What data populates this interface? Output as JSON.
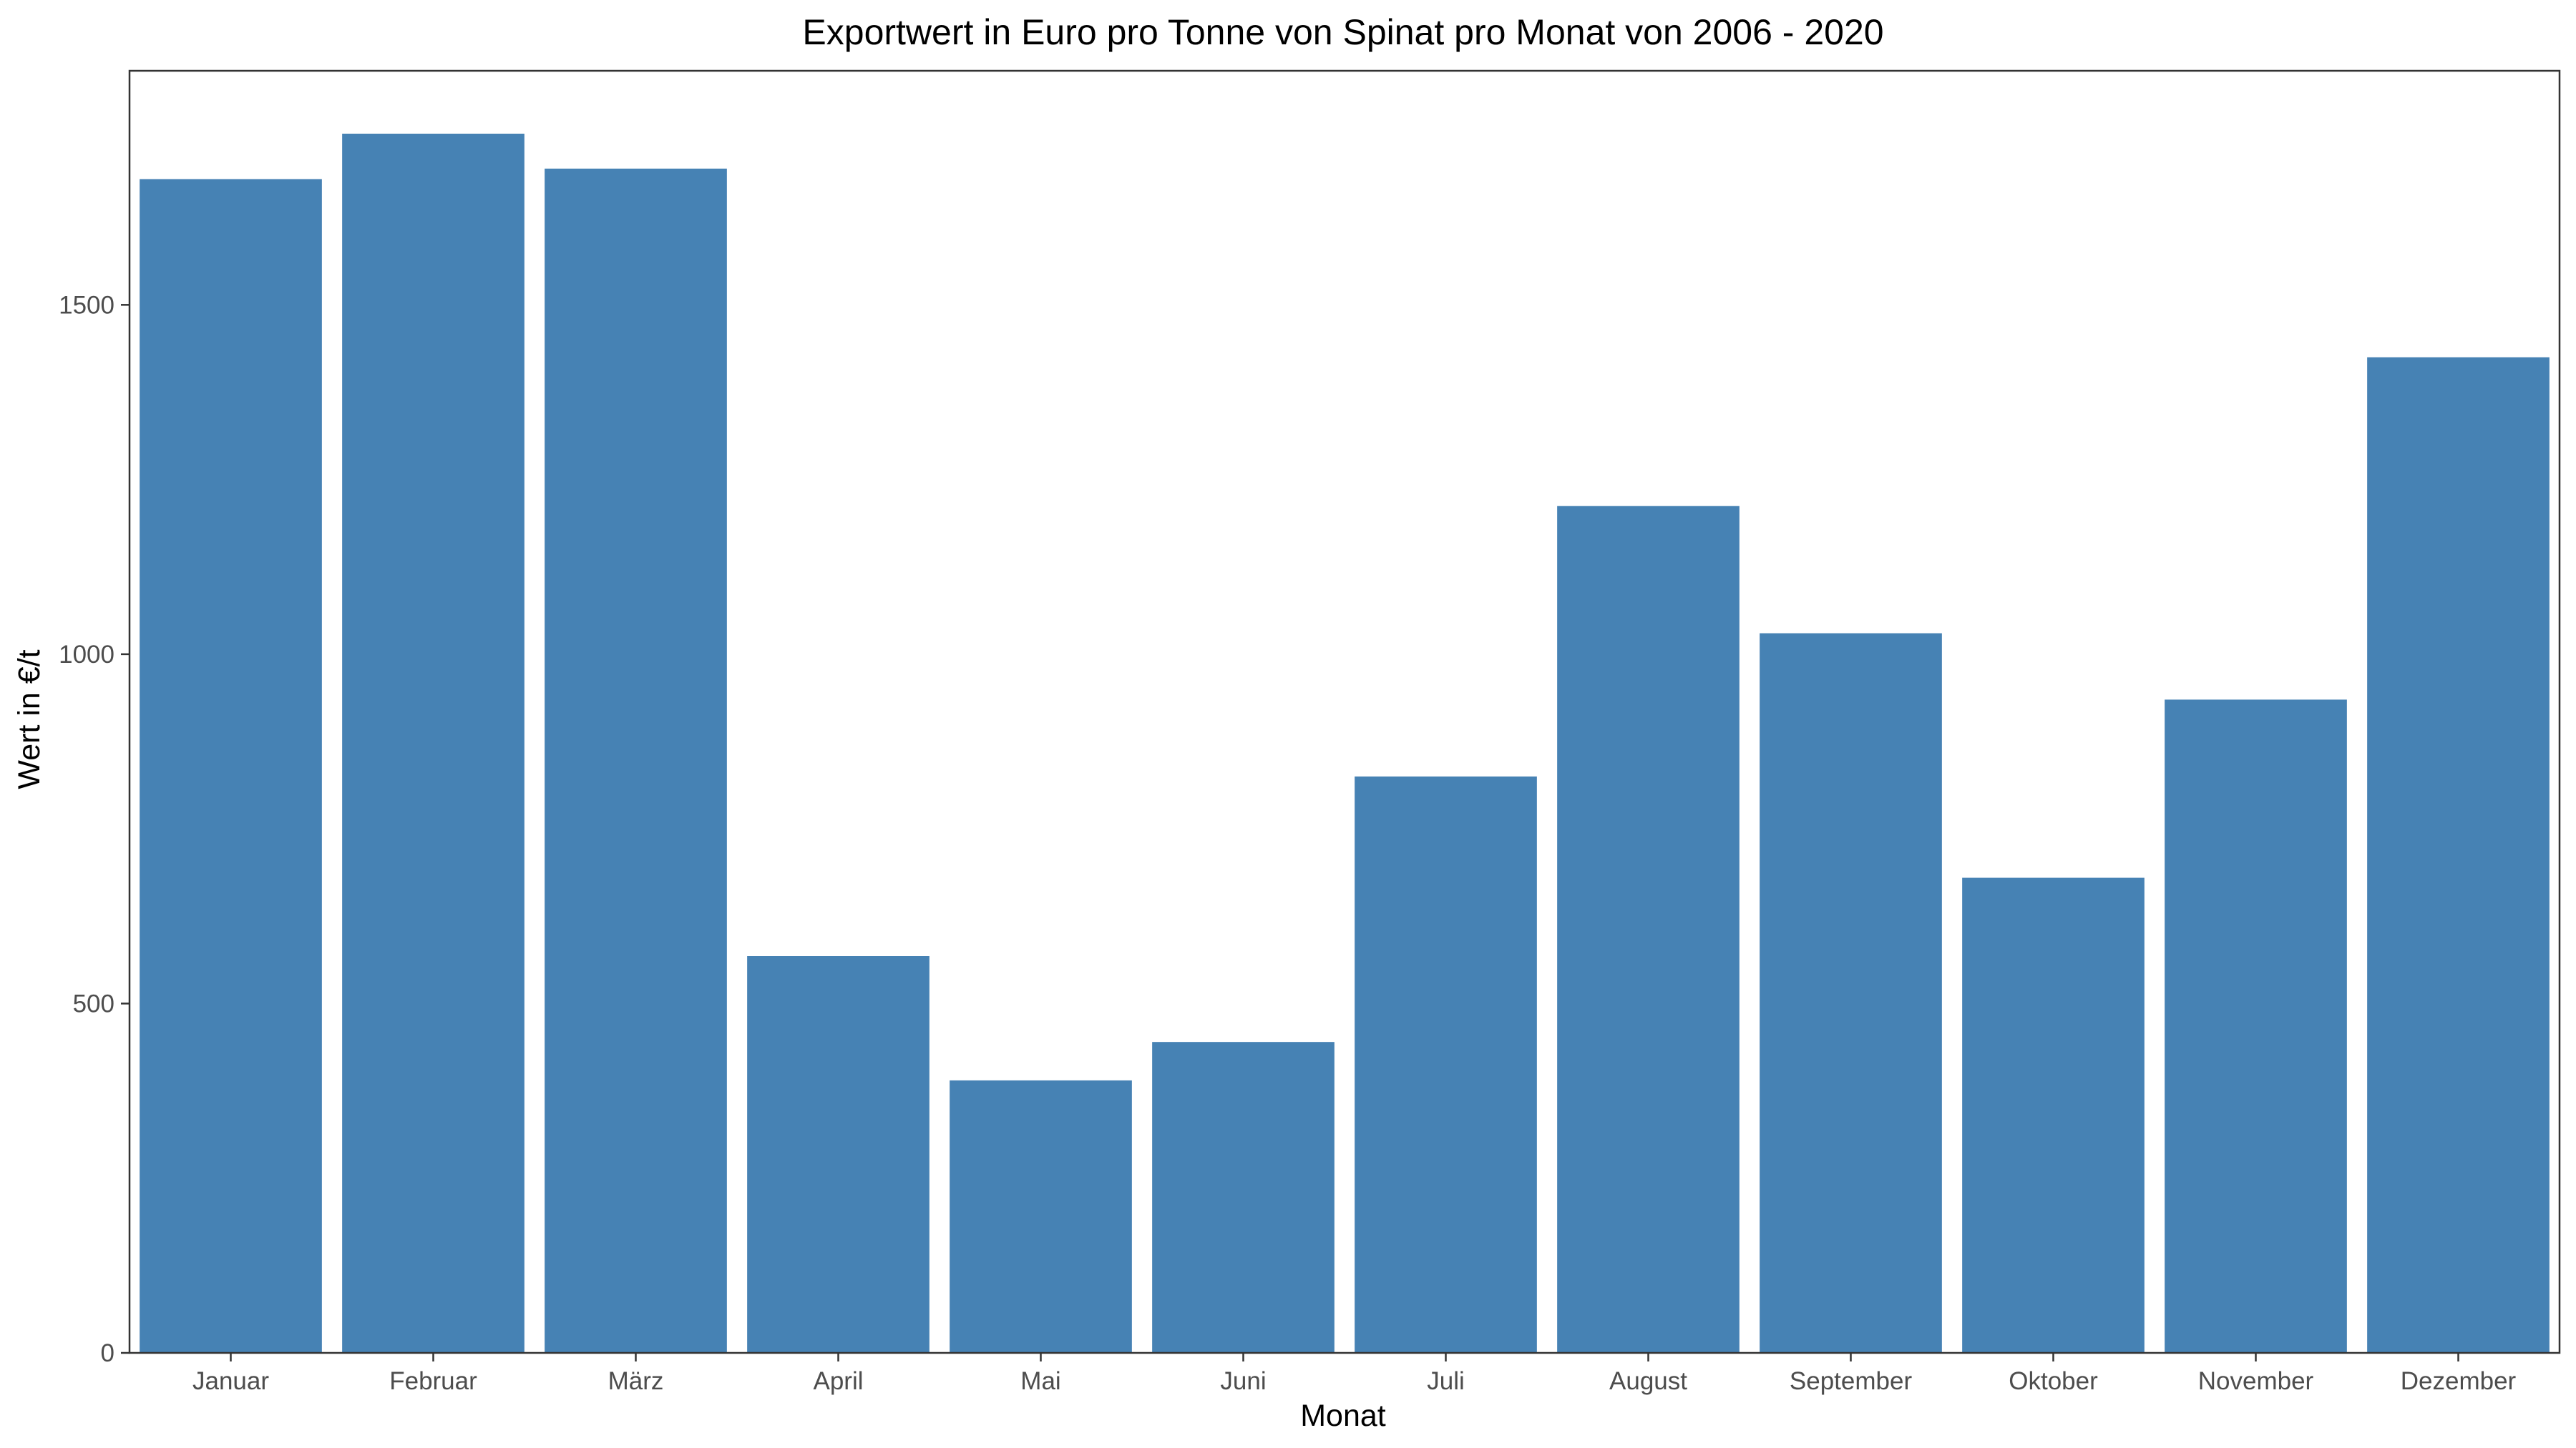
{
  "chart_data": {
    "type": "bar",
    "title": "Exportwert in Euro pro Tonne von Spinat pro Monat von 2006 - 2020",
    "xlabel": "Monat",
    "ylabel": "Wert in €/t",
    "categories": [
      "Januar",
      "Februar",
      "März",
      "April",
      "Mai",
      "Juni",
      "Juli",
      "August",
      "September",
      "Oktober",
      "November",
      "Dezember"
    ],
    "values": [
      1680,
      1745,
      1695,
      568,
      390,
      445,
      825,
      1212,
      1030,
      680,
      935,
      1425
    ],
    "ylim": [
      0,
      1835
    ],
    "yticks": [
      0,
      500,
      1000,
      1500
    ],
    "bar_color": "#4682b4",
    "grid": false,
    "legend": "none"
  }
}
